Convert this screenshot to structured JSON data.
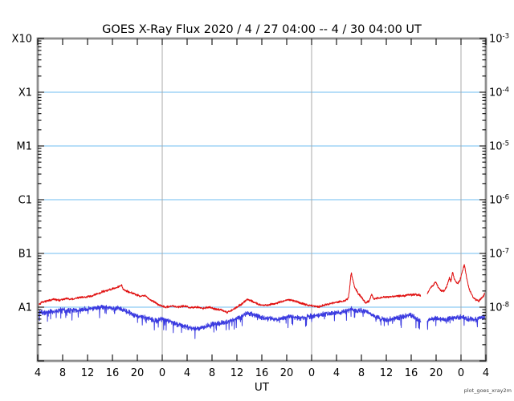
{
  "title": "GOES X-Ray Flux   2020 / 4 / 27   04:00  --   4 / 30   04:00   UT",
  "caption": "plot_goes_xray2m",
  "chart_data": {
    "type": "line",
    "title": "GOES X-Ray Flux   2020 / 4 / 27   04:00  --   4 / 30   04:00   UT",
    "x_axis": {
      "label": "UT",
      "start": "2020-04-27 04:00 UT",
      "end": "2020-04-30 04:00 UT",
      "tick_interval_hours": 4,
      "tick_hours": [
        0,
        4,
        8,
        12,
        16,
        20,
        24,
        28,
        32,
        36,
        40,
        44,
        48,
        52,
        56,
        60,
        64,
        68,
        72
      ],
      "tick_labels": [
        "4",
        "8",
        "12",
        "16",
        "20",
        "0",
        "4",
        "8",
        "12",
        "16",
        "20",
        "0",
        "4",
        "8",
        "12",
        "16",
        "20",
        "0",
        "4"
      ]
    },
    "y_axis": {
      "scale": "log",
      "range": [
        1e-09,
        0.001
      ],
      "left_labels": [
        {
          "text": "X10",
          "flux": 0.001
        },
        {
          "text": "X1",
          "flux": 0.0001
        },
        {
          "text": "M1",
          "flux": 1e-05
        },
        {
          "text": "C1",
          "flux": 1e-06
        },
        {
          "text": "B1",
          "flux": 1e-07
        },
        {
          "text": "A1",
          "flux": 1e-08
        }
      ],
      "right_labels": [
        {
          "base": "10",
          "exp": "-3",
          "flux": 0.001
        },
        {
          "base": "10",
          "exp": "-4",
          "flux": 0.0001
        },
        {
          "base": "10",
          "exp": "-5",
          "flux": 1e-05
        },
        {
          "base": "10",
          "exp": "-6",
          "flux": 1e-06
        },
        {
          "base": "10",
          "exp": "-7",
          "flux": 1e-07
        },
        {
          "base": "10",
          "exp": "-8",
          "flux": 1e-08
        }
      ]
    },
    "gridlines": {
      "horizontal_flux_values": [
        0.0001,
        1e-05,
        1e-06,
        1e-07,
        1e-08
      ],
      "horizontal_color": "#6fbdf2",
      "vertical_hours_from_start": [
        20,
        44,
        68
      ],
      "vertical_color": "#a8a8a8"
    },
    "frame_color": "#8e8e8e",
    "gaps_hours_from_start": [
      [
        61.55,
        62.55
      ]
    ],
    "series": [
      {
        "name": "xray-flux-blue-short-wave",
        "color": "#3a3ae0",
        "noise_log": 0.055,
        "spike_prob": 0.05,
        "spike_depth": 0.18,
        "anchors": [
          [
            0,
            8.2e-09
          ],
          [
            1,
            7.8e-09
          ],
          [
            2,
            8.4e-09
          ],
          [
            3,
            8.4e-09
          ],
          [
            4,
            8.8e-09
          ],
          [
            5,
            8.5e-09
          ],
          [
            6,
            8.8e-09
          ],
          [
            7,
            9e-09
          ],
          [
            8,
            9.3e-09
          ],
          [
            9,
            9.4e-09
          ],
          [
            10,
            9.8e-09
          ],
          [
            11,
            9.9e-09
          ],
          [
            12,
            9.6e-09
          ],
          [
            13,
            9.5e-09
          ],
          [
            14,
            8.6e-09
          ],
          [
            15,
            7.6e-09
          ],
          [
            16,
            6.8e-09
          ],
          [
            17,
            6.6e-09
          ],
          [
            18,
            6e-09
          ],
          [
            19,
            5.6e-09
          ],
          [
            20,
            6e-09
          ],
          [
            21,
            5.6e-09
          ],
          [
            22,
            5e-09
          ],
          [
            23,
            4.6e-09
          ],
          [
            24,
            4.3e-09
          ],
          [
            25,
            4e-09
          ],
          [
            26,
            4e-09
          ],
          [
            27,
            4.3e-09
          ],
          [
            28,
            4.8e-09
          ],
          [
            29,
            5e-09
          ],
          [
            30,
            5.2e-09
          ],
          [
            31,
            5.6e-09
          ],
          [
            32,
            6.2e-09
          ],
          [
            33,
            7e-09
          ],
          [
            33.8,
            7.8e-09
          ],
          [
            34.6,
            7.3e-09
          ],
          [
            35.5,
            6.7e-09
          ],
          [
            36.5,
            6.3e-09
          ],
          [
            37.5,
            6e-09
          ],
          [
            38.5,
            5.9e-09
          ],
          [
            39.5,
            6.4e-09
          ],
          [
            40.5,
            6.8e-09
          ],
          [
            41.5,
            6.4e-09
          ],
          [
            42.5,
            6.2e-09
          ],
          [
            43.5,
            6.6e-09
          ],
          [
            44.5,
            7e-09
          ],
          [
            45.5,
            7.3e-09
          ],
          [
            46.5,
            7.6e-09
          ],
          [
            47.5,
            7.8e-09
          ],
          [
            48.5,
            8e-09
          ],
          [
            49.5,
            8.3e-09
          ],
          [
            50.35,
            9.3e-09
          ],
          [
            51,
            8.6e-09
          ],
          [
            52,
            8.6e-09
          ],
          [
            53,
            8e-09
          ],
          [
            54,
            7e-09
          ],
          [
            55,
            6.2e-09
          ],
          [
            56,
            5.8e-09
          ],
          [
            57,
            6e-09
          ],
          [
            58,
            6.4e-09
          ],
          [
            59,
            6.9e-09
          ],
          [
            60,
            7.1e-09
          ],
          [
            61,
            6e-09
          ],
          [
            61.55,
            5.4e-09
          ],
          [
            62.55,
            5.4e-09
          ],
          [
            63,
            5.9e-09
          ],
          [
            64,
            6.2e-09
          ],
          [
            65,
            5.8e-09
          ],
          [
            66,
            6e-09
          ],
          [
            67,
            6.4e-09
          ],
          [
            68,
            6.5e-09
          ],
          [
            69,
            6.2e-09
          ],
          [
            70,
            5.8e-09
          ],
          [
            71,
            6e-09
          ],
          [
            72,
            6.8e-09
          ]
        ]
      },
      {
        "name": "xray-flux-red-long-wave",
        "color": "#e01010",
        "noise_log": 0.024,
        "spike_prob": 0,
        "spike_depth": 0,
        "anchors": [
          [
            0,
            1.05e-08
          ],
          [
            0.7,
            1.25e-08
          ],
          [
            1.5,
            1.3e-08
          ],
          [
            2.5,
            1.4e-08
          ],
          [
            3.5,
            1.35e-08
          ],
          [
            4.5,
            1.45e-08
          ],
          [
            5.5,
            1.4e-08
          ],
          [
            6.5,
            1.5e-08
          ],
          [
            7.5,
            1.55e-08
          ],
          [
            8.5,
            1.6e-08
          ],
          [
            9.5,
            1.75e-08
          ],
          [
            10.5,
            1.95e-08
          ],
          [
            11.5,
            2.1e-08
          ],
          [
            12.3,
            2.25e-08
          ],
          [
            13.1,
            2.4e-08
          ],
          [
            13.45,
            2.6e-08
          ],
          [
            13.7,
            2.15e-08
          ],
          [
            14.5,
            1.95e-08
          ],
          [
            15.5,
            1.75e-08
          ],
          [
            16.5,
            1.6e-08
          ],
          [
            17.2,
            1.65e-08
          ],
          [
            17.9,
            1.4e-08
          ],
          [
            18.7,
            1.25e-08
          ],
          [
            19.5,
            1.1e-08
          ],
          [
            20.5,
            1e-08
          ],
          [
            21.5,
            1.05e-08
          ],
          [
            22.5,
            1e-08
          ],
          [
            23.5,
            1.05e-08
          ],
          [
            24.5,
            9.8e-09
          ],
          [
            25.5,
            1e-08
          ],
          [
            26.5,
            9.5e-09
          ],
          [
            27.5,
            1e-08
          ],
          [
            28.5,
            9.2e-09
          ],
          [
            29.5,
            8.8e-09
          ],
          [
            30.4,
            8e-09
          ],
          [
            31.2,
            8.8e-09
          ],
          [
            32,
            1e-08
          ],
          [
            32.8,
            1.15e-08
          ],
          [
            33.6,
            1.4e-08
          ],
          [
            34.1,
            1.35e-08
          ],
          [
            34.8,
            1.22e-08
          ],
          [
            35.6,
            1.12e-08
          ],
          [
            36.5,
            1.08e-08
          ],
          [
            37.5,
            1.12e-08
          ],
          [
            38.5,
            1.2e-08
          ],
          [
            39.5,
            1.3e-08
          ],
          [
            40.3,
            1.38e-08
          ],
          [
            41.2,
            1.3e-08
          ],
          [
            42.2,
            1.2e-08
          ],
          [
            43.2,
            1.1e-08
          ],
          [
            44.2,
            1.05e-08
          ],
          [
            45.2,
            1.02e-08
          ],
          [
            46.2,
            1.1e-08
          ],
          [
            47.2,
            1.18e-08
          ],
          [
            48.2,
            1.25e-08
          ],
          [
            49.2,
            1.3e-08
          ],
          [
            49.9,
            1.45e-08
          ],
          [
            50.1,
            2.2e-08
          ],
          [
            50.35,
            4.4e-08
          ],
          [
            50.6,
            3.3e-08
          ],
          [
            50.9,
            2.4e-08
          ],
          [
            51.4,
            1.85e-08
          ],
          [
            52,
            1.55e-08
          ],
          [
            52.7,
            1.2e-08
          ],
          [
            53.2,
            1.28e-08
          ],
          [
            53.65,
            1.75e-08
          ],
          [
            54,
            1.42e-08
          ],
          [
            54.7,
            1.48e-08
          ],
          [
            55.5,
            1.52e-08
          ],
          [
            56.5,
            1.55e-08
          ],
          [
            57.5,
            1.6e-08
          ],
          [
            58.5,
            1.62e-08
          ],
          [
            59.5,
            1.68e-08
          ],
          [
            60.5,
            1.72e-08
          ],
          [
            61.2,
            1.7e-08
          ],
          [
            61.55,
            1.6e-08
          ],
          [
            62.55,
            1.75e-08
          ],
          [
            63.1,
            2.3e-08
          ],
          [
            63.6,
            2.6e-08
          ],
          [
            63.95,
            3e-08
          ],
          [
            64.35,
            2.35e-08
          ],
          [
            64.8,
            2.05e-08
          ],
          [
            65.3,
            2e-08
          ],
          [
            65.8,
            2.6e-08
          ],
          [
            66.15,
            3.6e-08
          ],
          [
            66.4,
            3e-08
          ],
          [
            66.65,
            4.5e-08
          ],
          [
            66.95,
            3.3e-08
          ],
          [
            67.45,
            2.7e-08
          ],
          [
            67.85,
            3.2e-08
          ],
          [
            68.3,
            5e-08
          ],
          [
            68.55,
            6.2e-08
          ],
          [
            68.85,
            3.8e-08
          ],
          [
            69.3,
            2.2e-08
          ],
          [
            69.9,
            1.55e-08
          ],
          [
            70.4,
            1.35e-08
          ],
          [
            70.9,
            1.3e-08
          ],
          [
            71.4,
            1.5e-08
          ],
          [
            72,
            1.9e-08
          ]
        ]
      }
    ]
  }
}
